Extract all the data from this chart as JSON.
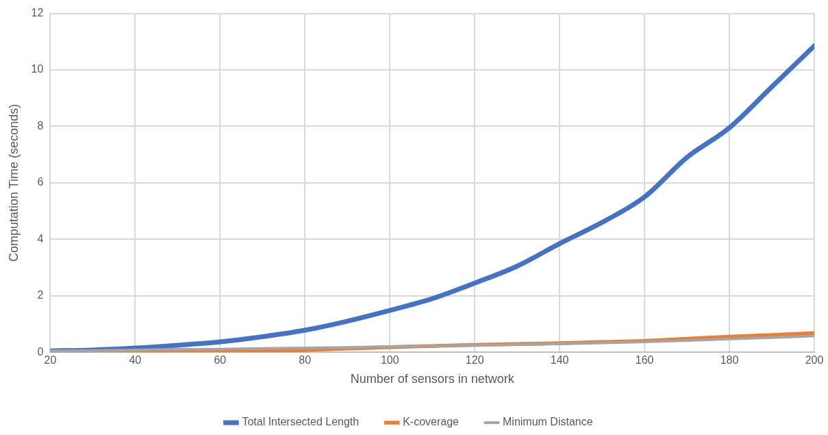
{
  "chart_data": {
    "type": "line",
    "xlabel": "Number of sensors in network",
    "ylabel": "Computation Time (seconds)",
    "x": [
      20,
      30,
      40,
      50,
      60,
      70,
      80,
      90,
      100,
      110,
      120,
      130,
      140,
      150,
      160,
      170,
      180,
      190,
      200
    ],
    "series": [
      {
        "name": "Total Intersected Length",
        "color": "#4472c4",
        "values": [
          0.05,
          0.08,
          0.15,
          0.25,
          0.37,
          0.55,
          0.78,
          1.1,
          1.48,
          1.9,
          2.45,
          3.05,
          3.85,
          4.6,
          5.5,
          6.9,
          7.95,
          9.4,
          10.85
        ]
      },
      {
        "name": "K-coverage",
        "color": "#ed7d31",
        "values": [
          0.02,
          0.02,
          0.03,
          0.04,
          0.05,
          0.06,
          0.08,
          0.13,
          0.18,
          0.22,
          0.26,
          0.29,
          0.32,
          0.36,
          0.4,
          0.48,
          0.55,
          0.61,
          0.68
        ]
      },
      {
        "name": "Minimum Distance",
        "color": "#a5a5a5",
        "values": [
          0.05,
          0.06,
          0.08,
          0.1,
          0.11,
          0.13,
          0.15,
          0.17,
          0.2,
          0.22,
          0.25,
          0.27,
          0.3,
          0.33,
          0.37,
          0.42,
          0.47,
          0.52,
          0.58
        ]
      }
    ],
    "xlim": [
      20,
      200
    ],
    "xticks": [
      20,
      40,
      60,
      80,
      100,
      120,
      140,
      160,
      180,
      200
    ],
    "ylim": [
      0,
      12
    ],
    "yticks": [
      0,
      2,
      4,
      6,
      8,
      10,
      12
    ],
    "grid": true,
    "legend": "bottom",
    "marker": "none",
    "line_style": "solid"
  }
}
